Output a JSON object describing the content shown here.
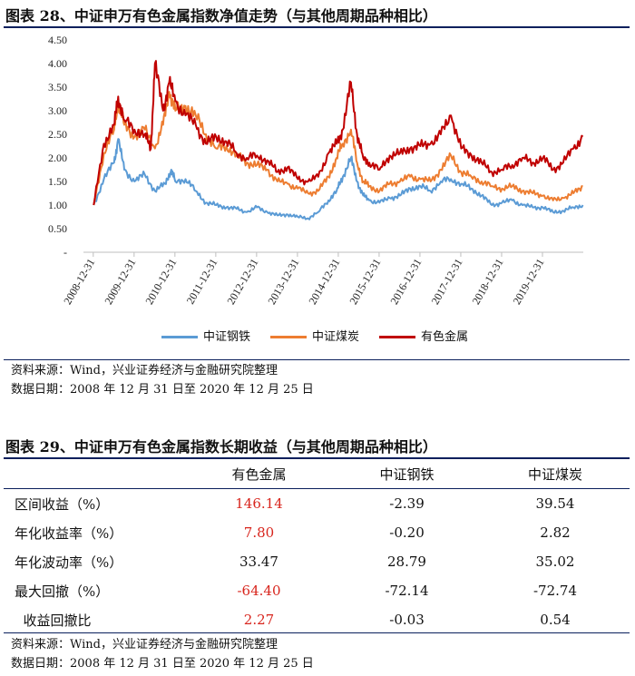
{
  "figure28": {
    "title": "图表 28、中证申万有色金属指数净值走势（与其他周期品种相比）",
    "source": "资料来源：Wind，兴业证券经济与金融研究院整理",
    "date_range": "数据日期：2008 年 12 月 31 日至 2020 年 12 月 25 日"
  },
  "chart_data": {
    "type": "line",
    "title": "图表 28、中证申万有色金属指数净值走势（与其他周期品种相比）",
    "ylim": [
      0,
      4.5
    ],
    "y_ticks": [
      {
        "label": "4.50",
        "value": 4.5
      },
      {
        "label": "4.00",
        "value": 4.0
      },
      {
        "label": "3.50",
        "value": 3.5
      },
      {
        "label": "3.00",
        "value": 3.0
      },
      {
        "label": "2.50",
        "value": 2.5
      },
      {
        "label": "2.00",
        "value": 2.0
      },
      {
        "label": "1.50",
        "value": 1.5
      },
      {
        "label": "1.00",
        "value": 1.0
      },
      {
        "label": "0.50",
        "value": 0.5
      },
      {
        "label": "-",
        "value": 0
      }
    ],
    "x_range": [
      2008.75,
      2020.99
    ],
    "x_ticks": [
      {
        "label": "2008-12-31",
        "value": 2008.99
      },
      {
        "label": "2009-12-31",
        "value": 2009.99
      },
      {
        "label": "2010-12-31",
        "value": 2010.99
      },
      {
        "label": "2011-12-31",
        "value": 2011.99
      },
      {
        "label": "2012-12-31",
        "value": 2012.99
      },
      {
        "label": "2013-12-31",
        "value": 2013.99
      },
      {
        "label": "2014-12-31",
        "value": 2014.99
      },
      {
        "label": "2015-12-31",
        "value": 2015.99
      },
      {
        "label": "2016-12-31",
        "value": 2016.99
      },
      {
        "label": "2017-12-31",
        "value": 2017.99
      },
      {
        "label": "2018-12-31",
        "value": 2018.99
      },
      {
        "label": "2019-12-31",
        "value": 2019.99
      }
    ],
    "series": [
      {
        "name": "中证钢铁",
        "color": "#5b9bd5",
        "x": [
          2009.0,
          2009.25,
          2009.5,
          2009.6,
          2009.75,
          2010.0,
          2010.25,
          2010.5,
          2010.75,
          2010.9,
          2011.0,
          2011.25,
          2011.5,
          2011.75,
          2012.0,
          2012.25,
          2012.5,
          2012.75,
          2013.0,
          2013.25,
          2013.5,
          2013.75,
          2014.0,
          2014.25,
          2014.5,
          2014.75,
          2014.95,
          2015.1,
          2015.3,
          2015.45,
          2015.6,
          2015.75,
          2016.0,
          2016.25,
          2016.5,
          2016.75,
          2017.0,
          2017.25,
          2017.5,
          2017.75,
          2018.0,
          2018.25,
          2018.5,
          2018.75,
          2019.0,
          2019.25,
          2019.5,
          2019.75,
          2020.0,
          2020.25,
          2020.5,
          2020.75,
          2020.98
        ],
        "y": [
          1.0,
          1.55,
          1.9,
          2.4,
          1.75,
          1.5,
          1.65,
          1.3,
          1.45,
          1.75,
          1.5,
          1.55,
          1.3,
          1.05,
          1.0,
          0.95,
          0.92,
          0.85,
          0.95,
          0.85,
          0.78,
          0.8,
          0.75,
          0.72,
          0.85,
          1.1,
          1.3,
          1.6,
          2.0,
          1.5,
          1.2,
          1.1,
          1.05,
          1.15,
          1.2,
          1.35,
          1.4,
          1.3,
          1.5,
          1.55,
          1.45,
          1.35,
          1.2,
          1.0,
          1.05,
          1.1,
          1.0,
          0.95,
          0.95,
          0.85,
          0.88,
          0.95,
          1.0
        ]
      },
      {
        "name": "中证煤炭",
        "color": "#ed7d31",
        "x": [
          2009.0,
          2009.25,
          2009.5,
          2009.6,
          2009.75,
          2010.0,
          2010.25,
          2010.5,
          2010.7,
          2010.85,
          2011.0,
          2011.25,
          2011.5,
          2011.75,
          2012.0,
          2012.25,
          2012.5,
          2012.75,
          2013.0,
          2013.25,
          2013.5,
          2013.75,
          2014.0,
          2014.25,
          2014.5,
          2014.75,
          2014.95,
          2015.1,
          2015.3,
          2015.45,
          2015.6,
          2015.75,
          2016.0,
          2016.25,
          2016.5,
          2016.75,
          2017.0,
          2017.25,
          2017.5,
          2017.75,
          2018.0,
          2018.25,
          2018.5,
          2018.75,
          2019.0,
          2019.25,
          2019.5,
          2019.75,
          2020.0,
          2020.25,
          2020.5,
          2020.75,
          2020.98
        ],
        "y": [
          1.0,
          2.1,
          2.6,
          3.2,
          2.7,
          2.45,
          2.6,
          2.2,
          2.7,
          3.4,
          3.0,
          3.1,
          2.9,
          2.5,
          2.2,
          2.25,
          2.05,
          1.9,
          1.85,
          1.75,
          1.5,
          1.45,
          1.35,
          1.25,
          1.3,
          1.6,
          2.0,
          2.3,
          2.6,
          1.9,
          1.5,
          1.4,
          1.3,
          1.45,
          1.5,
          1.6,
          1.55,
          1.5,
          1.75,
          2.05,
          1.7,
          1.6,
          1.5,
          1.4,
          1.35,
          1.4,
          1.3,
          1.25,
          1.2,
          1.1,
          1.15,
          1.25,
          1.4
        ]
      },
      {
        "name": "有色金属",
        "color": "#c00000",
        "x": [
          2009.0,
          2009.25,
          2009.5,
          2009.6,
          2009.75,
          2010.0,
          2010.25,
          2010.4,
          2010.5,
          2010.7,
          2010.85,
          2011.0,
          2011.25,
          2011.5,
          2011.75,
          2012.0,
          2012.25,
          2012.5,
          2012.75,
          2013.0,
          2013.25,
          2013.5,
          2013.75,
          2014.0,
          2014.25,
          2014.5,
          2014.75,
          2014.95,
          2015.1,
          2015.3,
          2015.45,
          2015.6,
          2015.75,
          2016.0,
          2016.25,
          2016.5,
          2016.75,
          2017.0,
          2017.25,
          2017.5,
          2017.75,
          2018.0,
          2018.25,
          2018.5,
          2018.75,
          2019.0,
          2019.25,
          2019.5,
          2019.75,
          2020.0,
          2020.25,
          2020.5,
          2020.75,
          2020.98
        ],
        "y": [
          1.0,
          2.3,
          2.7,
          3.3,
          2.8,
          2.6,
          2.5,
          2.2,
          4.0,
          3.0,
          3.6,
          3.2,
          2.9,
          2.7,
          2.3,
          2.45,
          2.35,
          2.1,
          2.0,
          2.05,
          1.95,
          1.7,
          1.8,
          1.55,
          1.5,
          1.6,
          2.1,
          2.3,
          2.6,
          3.6,
          2.5,
          2.0,
          1.9,
          1.75,
          2.05,
          2.1,
          2.2,
          2.25,
          2.3,
          2.5,
          2.9,
          2.2,
          2.05,
          1.9,
          1.7,
          1.75,
          1.85,
          2.0,
          1.9,
          2.0,
          1.75,
          1.9,
          2.2,
          2.45
        ]
      }
    ]
  },
  "figure29": {
    "title": "图表 29、中证申万有色金属指数长期收益（与其他周期品种相比）",
    "columns": [
      "",
      "有色金属",
      "中证钢铁",
      "中证煤炭"
    ],
    "rows": [
      {
        "label": "区间收益（%）",
        "values": [
          "146.14",
          "-2.39",
          "39.54"
        ]
      },
      {
        "label": "年化收益率（%）",
        "values": [
          "7.80",
          "-0.20",
          "2.82"
        ]
      },
      {
        "label": "年化波动率（%）",
        "values": [
          "33.47",
          "28.79",
          "35.02"
        ]
      },
      {
        "label": "最大回撤（%）",
        "values": [
          "-64.40",
          "-72.14",
          "-72.74"
        ]
      },
      {
        "label": "  收益回撤比",
        "values": [
          "2.27",
          "-0.03",
          "0.54"
        ]
      }
    ],
    "highlight_color": "#d8251d",
    "source": "资料来源：Wind，兴业证券经济与金融研究院整理",
    "date_range": "数据日期：2008 年 12 月 31 日至 2020 年 12 月 25 日"
  }
}
